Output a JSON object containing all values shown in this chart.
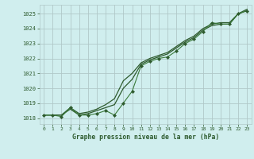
{
  "title": "Graphe pression niveau de la mer (hPa)",
  "background_color": "#d0eeee",
  "grid_color": "#b0c8c8",
  "line_color_dark": "#2d5a2d",
  "line_color_mid": "#3a7a3a",
  "xlim": [
    -0.5,
    23.5
  ],
  "ylim": [
    1017.6,
    1025.6
  ],
  "yticks": [
    1018,
    1019,
    1020,
    1021,
    1022,
    1023,
    1024,
    1025
  ],
  "xticks": [
    0,
    1,
    2,
    3,
    4,
    5,
    6,
    7,
    8,
    9,
    10,
    11,
    12,
    13,
    14,
    15,
    16,
    17,
    18,
    19,
    20,
    21,
    22,
    23
  ],
  "series_main_x": [
    0,
    1,
    2,
    3,
    4,
    5,
    6,
    7,
    8,
    9,
    10,
    11,
    12,
    13,
    14,
    15,
    16,
    17,
    18,
    19,
    20,
    21,
    22,
    23
  ],
  "series_main_y": [
    1018.2,
    1018.2,
    1018.1,
    1018.7,
    1018.2,
    1018.2,
    1018.3,
    1018.5,
    1018.2,
    1019.0,
    1019.8,
    1021.5,
    1021.8,
    1022.0,
    1022.1,
    1022.5,
    1023.0,
    1023.3,
    1023.8,
    1024.4,
    1024.3,
    1024.3,
    1025.0,
    1025.2
  ],
  "series_upper_x": [
    0,
    1,
    2,
    3,
    4,
    5,
    6,
    7,
    8,
    9,
    10,
    11,
    12,
    13,
    14,
    15,
    16,
    17,
    18,
    19,
    20,
    21,
    22,
    23
  ],
  "series_upper_y": [
    1018.2,
    1018.2,
    1018.2,
    1018.7,
    1018.3,
    1018.4,
    1018.6,
    1018.9,
    1019.3,
    1020.5,
    1021.0,
    1021.7,
    1022.0,
    1022.2,
    1022.4,
    1022.8,
    1023.2,
    1023.5,
    1024.0,
    1024.3,
    1024.4,
    1024.4,
    1025.0,
    1025.3
  ],
  "series_lower_x": [
    0,
    1,
    2,
    3,
    4,
    5,
    6,
    7,
    8,
    9,
    10,
    11,
    12,
    13,
    14,
    15,
    16,
    17,
    18,
    19,
    20,
    21,
    22,
    23
  ],
  "series_lower_y": [
    1018.2,
    1018.2,
    1018.2,
    1018.6,
    1018.2,
    1018.3,
    1018.5,
    1018.7,
    1018.9,
    1020.0,
    1020.6,
    1021.6,
    1021.9,
    1022.1,
    1022.3,
    1022.7,
    1023.1,
    1023.4,
    1023.9,
    1024.2,
    1024.3,
    1024.3,
    1025.0,
    1025.2
  ]
}
